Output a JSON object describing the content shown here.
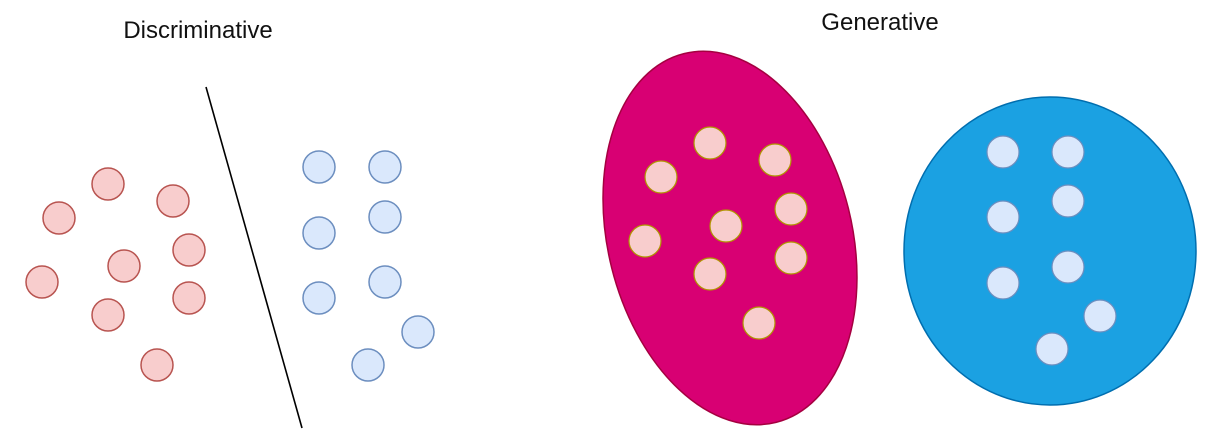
{
  "panels": {
    "discriminative": {
      "title": "Discriminative"
    },
    "generative": {
      "title": "Generative"
    }
  },
  "colors": {
    "pink_fill": "#f8cdcd",
    "pink_stroke": "#b85450",
    "blue_fill": "#dae8fc",
    "blue_stroke": "#6c8ebf",
    "magenta_region": "#d80073",
    "magenta_region_stroke": "#a50040",
    "blue_region": "#1ba1e2",
    "blue_region_stroke": "#006eaf",
    "separator": "#000000",
    "gen_point_stroke_pink": "#b09500",
    "gen_point_stroke_blue": "#6c8ebf"
  }
}
